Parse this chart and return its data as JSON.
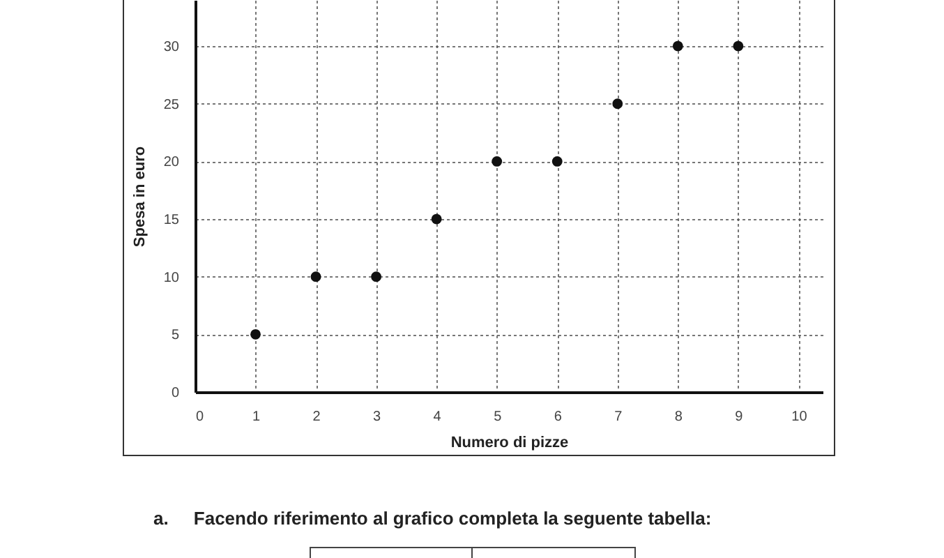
{
  "chart_data": {
    "type": "scatter",
    "xlabel": "Numero di pizze",
    "ylabel": "Spesa in euro",
    "x": [
      1,
      2,
      3,
      4,
      5,
      6,
      7,
      8,
      9
    ],
    "series": [
      {
        "color": "#111111",
        "values": [
          5,
          10,
          10,
          15,
          20,
          20,
          25,
          30,
          30
        ]
      }
    ],
    "xlim": [
      0,
      10.4
    ],
    "ylim": [
      0,
      34
    ],
    "xticks": [
      0,
      1,
      2,
      3,
      4,
      5,
      6,
      7,
      8,
      9,
      10
    ],
    "yticks": [
      0,
      5,
      10,
      15,
      20,
      25,
      30
    ],
    "grid": true,
    "marker": "circle",
    "annotations": [
      "a.     Facendo riferimento al grafico completa la seguente tabella:"
    ]
  }
}
